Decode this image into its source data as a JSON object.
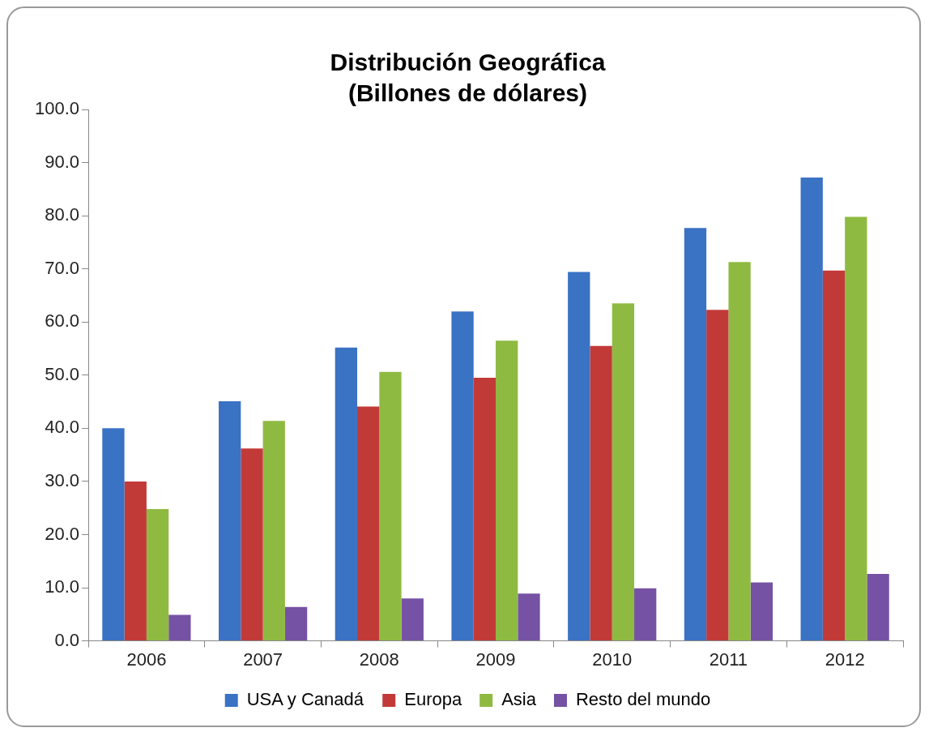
{
  "chart_data": {
    "type": "bar",
    "title": [
      "Distribución Geográfica",
      "(Billones de dólares)"
    ],
    "categories": [
      "2006",
      "2007",
      "2008",
      "2009",
      "2010",
      "2011",
      "2012"
    ],
    "series": [
      {
        "name": "USA y Canadá",
        "color": "#3a72c4",
        "values": [
          40,
          45.1,
          55.2,
          62,
          69.4,
          77.7,
          87.2
        ]
      },
      {
        "name": "Europa",
        "color": "#c23a38",
        "values": [
          30,
          36.2,
          44.1,
          49.5,
          55.5,
          62.3,
          69.7
        ]
      },
      {
        "name": "Asia",
        "color": "#8fba42",
        "values": [
          24.8,
          41.4,
          50.6,
          56.5,
          63.5,
          71.3,
          79.8
        ]
      },
      {
        "name": "Resto del mundo",
        "color": "#7552a4",
        "values": [
          4.9,
          6.4,
          8,
          8.9,
          9.9,
          11,
          12.6
        ]
      }
    ],
    "ylim": [
      0,
      100
    ],
    "yticks": [
      {
        "value": 0,
        "label": "0.0"
      },
      {
        "value": 10,
        "label": "10.0"
      },
      {
        "value": 20,
        "label": "20.0"
      },
      {
        "value": 30,
        "label": "30.0"
      },
      {
        "value": 40,
        "label": "40.0"
      },
      {
        "value": 50,
        "label": "50.0"
      },
      {
        "value": 60,
        "label": "60.0"
      },
      {
        "value": 70,
        "label": "70.0"
      },
      {
        "value": 80,
        "label": "80.0"
      },
      {
        "value": 90,
        "label": "90.0"
      },
      {
        "value": 100,
        "label": "100.0"
      }
    ],
    "grid": false,
    "legend": "bottom"
  }
}
